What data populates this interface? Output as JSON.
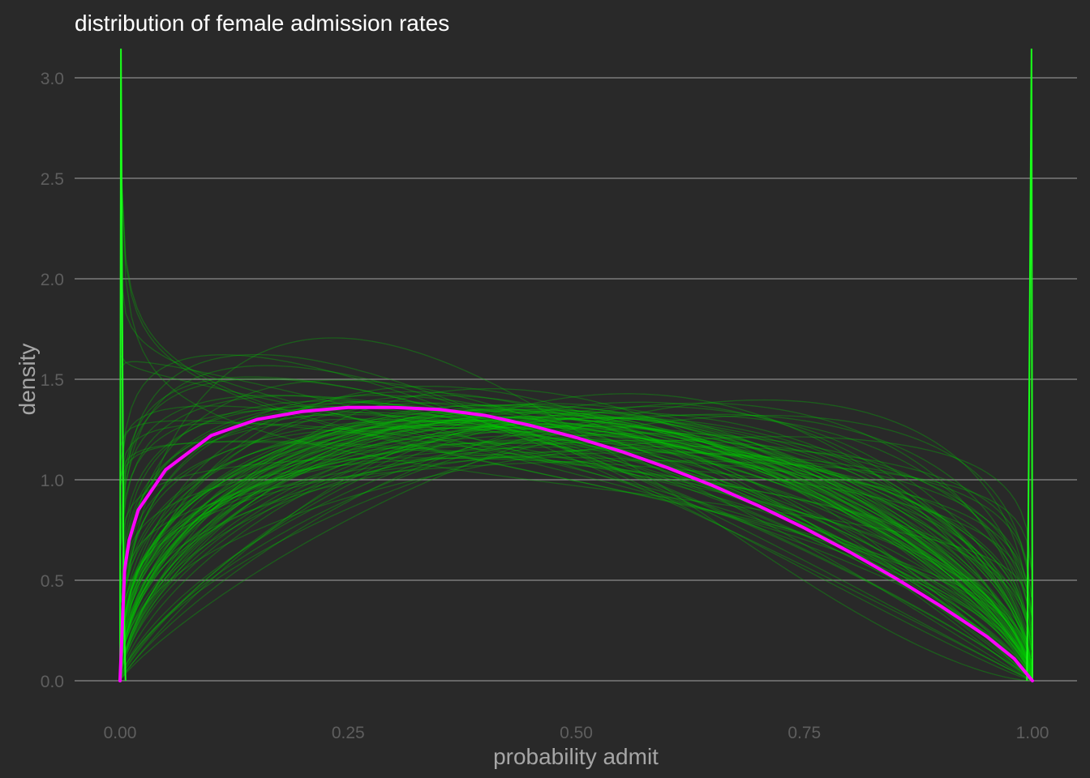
{
  "chart_data": {
    "type": "line",
    "title": "distribution of female admission rates",
    "xlabel": "probability admit",
    "ylabel": "density",
    "xlim": [
      -0.05,
      1.05
    ],
    "ylim": [
      -0.13,
      3.15
    ],
    "x_ticks": [
      0,
      0.25,
      0.5,
      0.75,
      1
    ],
    "x_tick_labels": [
      "0.00",
      "0.25",
      "0.50",
      "0.75",
      "1.00"
    ],
    "y_ticks": [
      0,
      0.5,
      1,
      1.5,
      2,
      2.5,
      3
    ],
    "y_tick_labels": [
      "0.0",
      "0.5",
      "1.0",
      "1.5",
      "2.0",
      "2.5",
      "3.0"
    ],
    "grid": true,
    "legend": "none",
    "colors": {
      "background": "#292929",
      "mean_curve": "#ff00ff",
      "posterior_draws": "#00cc00",
      "grid": "#8c8c8c"
    },
    "series": [
      {
        "kind": "mean",
        "x": [
          0,
          0.005,
          0.01,
          0.02,
          0.05,
          0.1,
          0.15,
          0.2,
          0.25,
          0.3,
          0.35,
          0.4,
          0.45,
          0.5,
          0.55,
          0.6,
          0.65,
          0.7,
          0.75,
          0.8,
          0.85,
          0.9,
          0.95,
          0.98,
          1
        ],
        "y": [
          0,
          0.55,
          0.7,
          0.85,
          1.05,
          1.22,
          1.3,
          1.34,
          1.36,
          1.36,
          1.35,
          1.32,
          1.27,
          1.21,
          1.14,
          1.06,
          0.97,
          0.87,
          0.76,
          0.64,
          0.51,
          0.37,
          0.22,
          0.11,
          0
        ]
      }
    ],
    "posterior_draws": {
      "count": 100,
      "beta_params": [
        [
          1.39,
          1.62
        ],
        [
          1.16,
          1.89
        ],
        [
          1.33,
          1.2
        ],
        [
          1.49,
          2.61
        ],
        [
          1.58,
          1.66
        ],
        [
          1.69,
          2.01
        ],
        [
          1.06,
          1.43
        ],
        [
          1.35,
          1.37
        ],
        [
          1.2,
          2.05
        ],
        [
          0.86,
          1.16
        ],
        [
          0.89,
          1.39
        ],
        [
          1.91,
          1.73
        ],
        [
          1.39,
          1.63
        ],
        [
          1.68,
          1.56
        ],
        [
          1.26,
          1.19
        ],
        [
          0.89,
          1.37
        ],
        [
          1.38,
          1.58
        ],
        [
          1.54,
          2.06
        ],
        [
          1.67,
          1.28
        ],
        [
          0.99,
          1.53
        ],
        [
          1.04,
          1.28
        ],
        [
          1.84,
          1.48
        ],
        [
          1.28,
          1.61
        ],
        [
          1.44,
          1.61
        ],
        [
          1.69,
          1.42
        ],
        [
          1.31,
          1.34
        ],
        [
          1.39,
          1.28
        ],
        [
          1.6,
          1.71
        ],
        [
          1.22,
          1.61
        ],
        [
          1.15,
          1.64
        ],
        [
          1.24,
          1.54
        ],
        [
          1.36,
          1.54
        ],
        [
          0.95,
          1.52
        ],
        [
          1.44,
          1.51
        ],
        [
          1.41,
          1.68
        ],
        [
          1.48,
          1.5
        ],
        [
          1.68,
          1.76
        ],
        [
          1.38,
          1.47
        ],
        [
          1.36,
          1.91
        ],
        [
          1.53,
          1.73
        ],
        [
          1.28,
          1.29
        ],
        [
          1.4,
          1.54
        ],
        [
          1.18,
          1.78
        ],
        [
          1.56,
          1.8
        ],
        [
          1.34,
          1.84
        ],
        [
          1.51,
          1.75
        ],
        [
          1.55,
          1.74
        ],
        [
          1.26,
          1.69
        ],
        [
          1.26,
          1.36
        ],
        [
          1.2,
          2.14
        ],
        [
          1.13,
          2.02
        ],
        [
          1.5,
          1.64
        ],
        [
          1.1,
          1.21
        ],
        [
          1.15,
          1.75
        ],
        [
          1.82,
          1.62
        ],
        [
          1.44,
          1.84
        ],
        [
          1.5,
          1.47
        ],
        [
          1.6,
          1.53
        ],
        [
          1.47,
          1.74
        ],
        [
          1.46,
          1.98
        ],
        [
          1.42,
          1.16
        ],
        [
          1.05,
          1.3
        ],
        [
          1.62,
          1.67
        ],
        [
          1.2,
          1.71
        ],
        [
          1.38,
          1.42
        ],
        [
          1.49,
          1.65
        ],
        [
          1.49,
          1.53
        ],
        [
          1.26,
          1.75
        ],
        [
          1.39,
          1.6
        ],
        [
          1.27,
          1.79
        ],
        [
          1.31,
          1.57
        ],
        [
          1.5,
          1.94
        ],
        [
          1.86,
          1.36
        ],
        [
          1.33,
          1.36
        ],
        [
          1.06,
          1.54
        ],
        [
          1.45,
          1.55
        ],
        [
          1.42,
          1.67
        ],
        [
          1.5,
          1.63
        ],
        [
          1.15,
          1.89
        ],
        [
          1.01,
          1.65
        ],
        [
          1.62,
          1.78
        ],
        [
          1.23,
          1.78
        ],
        [
          1.35,
          1.63
        ],
        [
          1.78,
          1.55
        ],
        [
          1.59,
          1.55
        ],
        [
          1.7,
          1.37
        ],
        [
          1.47,
          1.33
        ],
        [
          1.33,
          2.05
        ],
        [
          1.5,
          1.61
        ],
        [
          1.58,
          1.61
        ],
        [
          1.63,
          1.74
        ],
        [
          1.29,
          1.54
        ],
        [
          1.18,
          1.13
        ],
        [
          1.27,
          1.23
        ],
        [
          1.03,
          1.39
        ],
        [
          1.22,
          1.65
        ],
        [
          1.62,
          1.52
        ],
        [
          1.52,
          1.71
        ],
        [
          1.53,
          1.8
        ],
        [
          1.17,
          1.21
        ]
      ]
    }
  }
}
